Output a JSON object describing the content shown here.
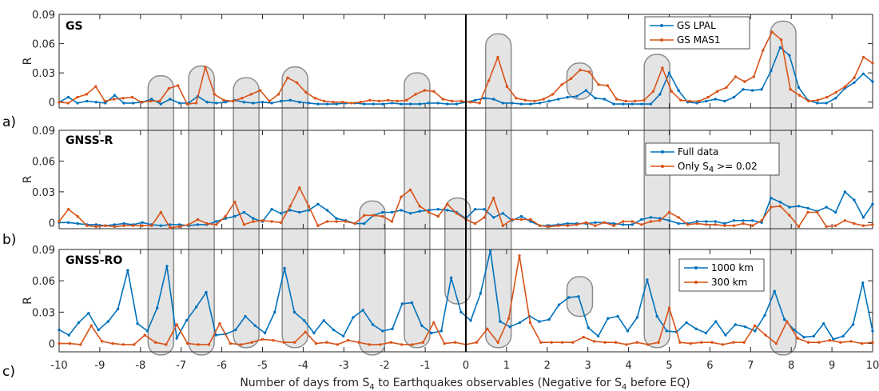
{
  "colors": {
    "blue": "#0072BD",
    "orange": "#D95319",
    "oval_fill": "#e4e4e4",
    "oval_stroke": "#8c8c8c",
    "axis": "#262626"
  },
  "xaxis": {
    "min": -10,
    "max": 10,
    "ticks": [
      -10,
      -9,
      -8,
      -7,
      -6,
      -5,
      -4,
      -3,
      -2,
      -1,
      0,
      1,
      2,
      3,
      4,
      5,
      6,
      7,
      8,
      9,
      10
    ],
    "label_main": "Number of days from S",
    "label_sub": "4",
    "label_mid": " to Earthquakes observables (Negative for S",
    "label_sub2": "4",
    "label_end": " before EQ)"
  },
  "chart_data": [
    {
      "type": "line",
      "panel": "a)",
      "title": "GS",
      "ylabel": "R",
      "ylim": [
        -0.006,
        0.09
      ],
      "yticks": [
        0,
        0.03,
        0.06,
        0.09
      ],
      "ytick_labels": [
        "0",
        "0.03",
        "0.06",
        "0.09"
      ],
      "legend_position": "top-right",
      "series": [
        {
          "name": "GS LPAL",
          "color": "#0072BD",
          "y": [
            0,
            0.005,
            -0.001,
            0.001,
            0,
            -0.001,
            0.007,
            -0.001,
            -0.001,
            0,
            0.003,
            -0.002,
            0.003,
            -0.001,
            -0.001,
            0.006,
            0,
            -0.001,
            0,
            0.002,
            0,
            -0.001,
            0,
            -0.001,
            0.001,
            0.002,
            0,
            -0.001,
            -0.002,
            -0.002,
            -0.002,
            -0.001,
            -0.001,
            -0.002,
            -0.002,
            -0.002,
            -0.001,
            -0.002,
            -0.002,
            -0.002,
            -0.001,
            -0.001,
            -0.002,
            -0.002,
            0,
            0.002,
            0.004,
            0.003,
            -0.001,
            -0.001,
            -0.002,
            -0.002,
            -0.001,
            0.001,
            0.003,
            0.005,
            0.006,
            0.012,
            0.004,
            0.003,
            -0.002,
            -0.002,
            -0.002,
            -0.002,
            -0.002,
            0.008,
            0.03,
            0.012,
            0,
            -0.001,
            0.001,
            0.003,
            0.001,
            0.005,
            0.013,
            0.012,
            0.013,
            0.032,
            0.056,
            0.048,
            0.015,
            0.002,
            -0.001,
            -0.001,
            0.004,
            0.014,
            0.02,
            0.029,
            0.021
          ]
        },
        {
          "name": "GS MAS1",
          "color": "#D95319",
          "y": [
            0,
            -0.001,
            0.005,
            0.008,
            0.016,
            0.001,
            0.003,
            0.004,
            0.005,
            0,
            0.001,
            0.001,
            0.014,
            0.017,
            -0.002,
            -0.001,
            0.036,
            0.008,
            0.002,
            0.001,
            0.004,
            0.008,
            0.012,
            0.001,
            0.008,
            0.025,
            0.02,
            0.01,
            0.004,
            0.001,
            0,
            0,
            -0.001,
            0,
            0.002,
            0.001,
            0.002,
            0.001,
            0.002,
            0.008,
            0.012,
            0.011,
            0.003,
            0.001,
            0.001,
            0,
            -0.001,
            0.022,
            0.046,
            0.016,
            0.004,
            0.002,
            0.001,
            0.003,
            0.008,
            0.018,
            0.024,
            0.033,
            0.031,
            0.018,
            0.017,
            0.003,
            0.001,
            0.001,
            0.002,
            0.011,
            0.035,
            0.011,
            0.002,
            0.001,
            0.001,
            0.005,
            0.011,
            0.015,
            0.026,
            0.021,
            0.026,
            0.053,
            0.072,
            0.064,
            0.013,
            0.007,
            0.001,
            0.002,
            0.005,
            0.01,
            0.016,
            0.025,
            0.046,
            0.04
          ]
        }
      ]
    },
    {
      "type": "line",
      "panel": "b)",
      "title": "GNSS-R",
      "ylabel": "R",
      "ylim": [
        -0.006,
        0.09
      ],
      "yticks": [
        0,
        0.03,
        0.06,
        0.09
      ],
      "ytick_labels": [
        "0",
        "0.03",
        "0.06",
        "0.09"
      ],
      "legend_position": "top-right",
      "series": [
        {
          "name": "Full data",
          "color": "#0072BD",
          "y": [
            0,
            0,
            -0.001,
            -0.002,
            -0.002,
            -0.003,
            -0.002,
            -0.001,
            -0.002,
            0,
            -0.002,
            -0.003,
            -0.002,
            -0.002,
            -0.003,
            -0.002,
            -0.002,
            0.001,
            0.004,
            0.006,
            0.01,
            0.004,
            0.001,
            0.013,
            0.009,
            0.012,
            0.01,
            0.012,
            0.018,
            0.012,
            0.004,
            0.002,
            -0.001,
            -0.001,
            0.007,
            0.01,
            0.01,
            0.012,
            0.009,
            0.011,
            0.012,
            0.013,
            0.012,
            0.01,
            0.004,
            0.013,
            0.013,
            0.005,
            0.009,
            0.002,
            0.006,
            0.001,
            -0.003,
            -0.003,
            -0.002,
            -0.001,
            -0.001,
            -0.001,
            0,
            0,
            -0.001,
            -0.002,
            -0.002,
            0.003,
            0.005,
            0.004,
            0.002,
            -0.001,
            -0.001,
            0.001,
            0.001,
            0.001,
            -0.001,
            0.002,
            0.002,
            0.002,
            0,
            0.024,
            0.02,
            0.015,
            0.016,
            0.014,
            0.011,
            0.015,
            0.01,
            0.03,
            0.022,
            0.005,
            0.018
          ]
        },
        {
          "name": "Only S4 >= 0.02",
          "color": "#D95319",
          "y": [
            0.001,
            0.013,
            0.006,
            -0.003,
            -0.004,
            -0.003,
            -0.004,
            -0.003,
            -0.003,
            -0.003,
            -0.003,
            0.01,
            -0.005,
            -0.004,
            -0.002,
            0.003,
            -0.001,
            -0.002,
            0.006,
            0.02,
            -0.002,
            0.001,
            0.002,
            0.001,
            0,
            0.016,
            0.034,
            0.016,
            -0.003,
            0.001,
            0.001,
            0.001,
            -0.001,
            0.007,
            0.007,
            0.006,
            0.001,
            0.025,
            0.032,
            0.016,
            0.01,
            0.006,
            0.018,
            0.009,
            0.003,
            -0.001,
            0.005,
            0.024,
            -0.003,
            0.003,
            0.003,
            0.003,
            -0.003,
            -0.004,
            -0.003,
            -0.003,
            -0.002,
            0,
            -0.003,
            0,
            -0.003,
            0.001,
            0.001,
            -0.002,
            0.001,
            0.002,
            0.01,
            0.005,
            -0.002,
            -0.001,
            -0.002,
            -0.002,
            -0.003,
            -0.003,
            -0.001,
            -0.003,
            0.002,
            0.015,
            0.016,
            0.007,
            -0.004,
            0.01,
            0.01,
            -0.004,
            -0.003,
            0.002,
            -0.001,
            -0.003,
            -0.002
          ]
        }
      ]
    },
    {
      "type": "line",
      "panel": "c)",
      "title": "GNSS-RO",
      "ylabel": "R",
      "ylim": [
        -0.008,
        0.09
      ],
      "yticks": [
        0,
        0.03,
        0.06,
        0.09
      ],
      "ytick_labels": [
        "0",
        "0.03",
        "0.06",
        "0.09"
      ],
      "legend_position": "top-right",
      "series": [
        {
          "name": "1000 km",
          "color": "#0072BD",
          "y": [
            0.013,
            0.008,
            0.02,
            0.029,
            0.013,
            0.021,
            0.033,
            0.07,
            0.019,
            0.012,
            0.034,
            0.074,
            0.005,
            0.022,
            0.035,
            0.049,
            0.008,
            0.009,
            0.013,
            0.026,
            0.017,
            0.01,
            0.03,
            0.072,
            0.03,
            0.022,
            0.01,
            0.022,
            0.013,
            0.007,
            0.025,
            0.032,
            0.018,
            0.012,
            0.014,
            0.038,
            0.039,
            0.017,
            0.01,
            0.012,
            0.063,
            0.03,
            0.022,
            0.048,
            0.089,
            0.021,
            0.016,
            0.02,
            0.026,
            0.021,
            0.023,
            0.037,
            0.044,
            0.045,
            0.015,
            0.007,
            0.024,
            0.026,
            0.012,
            0.025,
            0.061,
            0.026,
            0.012,
            0.011,
            0.02,
            0.014,
            0.01,
            0.021,
            0.008,
            0.018,
            0.016,
            0.012,
            0.027,
            0.05,
            0.023,
            0.013,
            0.006,
            0.007,
            0.019,
            0.004,
            0.007,
            0.018,
            0.058,
            0.012
          ]
        },
        {
          "name": "300 km",
          "color": "#D95319",
          "y": [
            0,
            0,
            -0.001,
            0.017,
            0.002,
            0,
            -0.001,
            -0.001,
            0.008,
            0.001,
            -0.001,
            0.018,
            0,
            -0.001,
            -0.001,
            0.019,
            0,
            -0.001,
            0.001,
            0.004,
            0.003,
            0.001,
            0.001,
            0.011,
            0,
            0.001,
            -0.001,
            0.003,
            0.001,
            -0.001,
            -0.001,
            0.001,
            -0.001,
            -0.001,
            0.001,
            0.02,
            0,
            0.001,
            -0.001,
            0.001,
            0.014,
            0.001,
            0.024,
            0.084,
            0.02,
            0.001,
            0.001,
            0.001,
            0.001,
            0.006,
            0.002,
            0.001,
            0.001,
            -0.001,
            0.001,
            -0.001,
            0.001,
            0.034,
            0.001,
            0,
            0.001,
            0.001,
            -0.001,
            0.001,
            0.001,
            0.017,
            0.008,
            0,
            0.021,
            0.005,
            0.001,
            0.001,
            0.003,
            0.001,
            0.002,
            0,
            0.001
          ]
        }
      ]
    }
  ],
  "ovals": [
    {
      "x": -7.5,
      "from_panel": 0,
      "y_top": 0.027,
      "to_panel": 2,
      "y_bottom": -0.011
    },
    {
      "x": -6.5,
      "from_panel": 0,
      "y_top": 0.037,
      "to_panel": 2,
      "y_bottom": -0.011
    },
    {
      "x": -5.4,
      "from_panel": 0,
      "y_top": 0.025,
      "to_panel": 2,
      "y_bottom": -0.004
    },
    {
      "x": -4.2,
      "from_panel": 0,
      "y_top": 0.036,
      "to_panel": 2,
      "y_bottom": -0.004
    },
    {
      "x": -2.3,
      "from_panel": 1,
      "y_top": 0.021,
      "to_panel": 2,
      "y_bottom": -0.011
    },
    {
      "x": -1.2,
      "from_panel": 0,
      "y_top": 0.03,
      "to_panel": 2,
      "y_bottom": -0.004
    },
    {
      "x": -0.2,
      "from_panel": 1,
      "y_top": 0.024,
      "to_panel": 2,
      "y_bottom": 0.038
    },
    {
      "x": 0.8,
      "from_panel": 0,
      "y_top": 0.07,
      "to_panel": 2,
      "y_bottom": -0.004
    },
    {
      "x": 2.8,
      "from_panel": 0,
      "y_top": 0.04,
      "to_panel": 0,
      "y_bottom": 0.003
    },
    {
      "x": 2.8,
      "from_panel": 2,
      "y_top": 0.064,
      "to_panel": 2,
      "y_bottom": 0.026
    },
    {
      "x": 4.7,
      "from_panel": 0,
      "y_top": 0.049,
      "to_panel": 2,
      "y_bottom": -0.004
    },
    {
      "x": 7.8,
      "from_panel": 0,
      "y_top": 0.083,
      "to_panel": 2,
      "y_bottom": -0.011
    }
  ]
}
